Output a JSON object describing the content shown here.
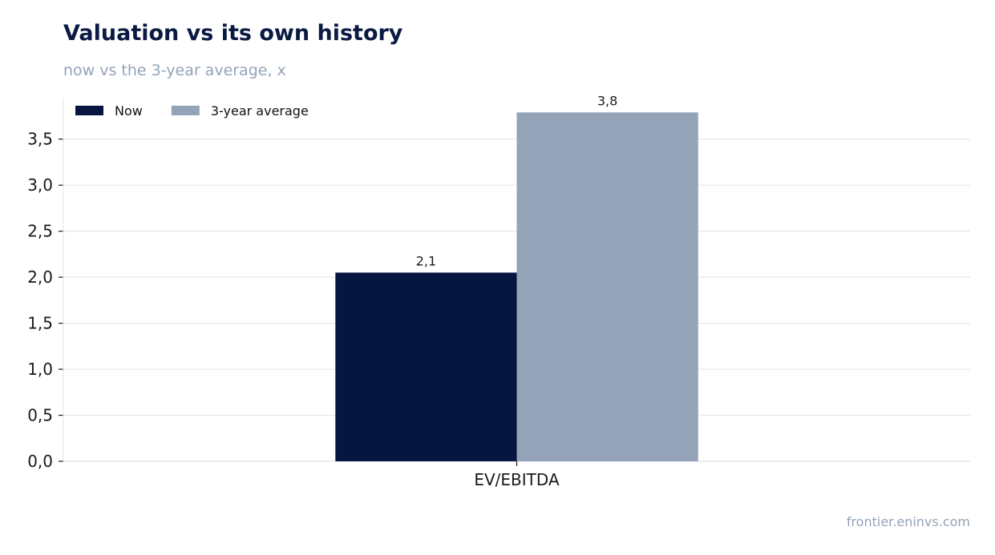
{
  "chart_data": {
    "type": "bar",
    "title": "Valuation vs its own history",
    "subtitle": "now vs the 3-year average, x",
    "categories": [
      "EV/EBITDA"
    ],
    "series": [
      {
        "name": "Now",
        "values": [
          2.05
        ],
        "label": "2,1",
        "color": "#071640"
      },
      {
        "name": "3-year average",
        "values": [
          3.79
        ],
        "label": "3,8",
        "color": "#94a3b8"
      }
    ],
    "ylim": [
      0,
      3.95
    ],
    "yticks": [
      "0,0",
      "0,5",
      "1,0",
      "1,5",
      "2,0",
      "2,5",
      "3,0",
      "3,5"
    ],
    "ytick_values": [
      0,
      0.5,
      1.0,
      1.5,
      2.0,
      2.5,
      3.0,
      3.5
    ],
    "grid": true,
    "legend": "top-left",
    "source": "frontier.eninvs.com"
  }
}
